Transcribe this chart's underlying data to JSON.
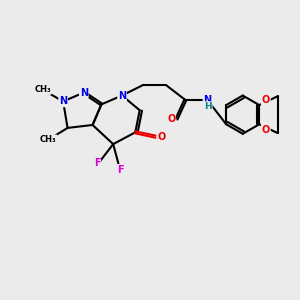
{
  "background_color": "#ebebeb",
  "atom_colors": {
    "N": "#0000ee",
    "O": "#ee0000",
    "F": "#dd00dd",
    "C": "#000000",
    "H": "#008080"
  },
  "bond_color": "#000000",
  "bond_width": 1.5,
  "figsize": [
    3.0,
    3.0
  ],
  "dpi": 100
}
